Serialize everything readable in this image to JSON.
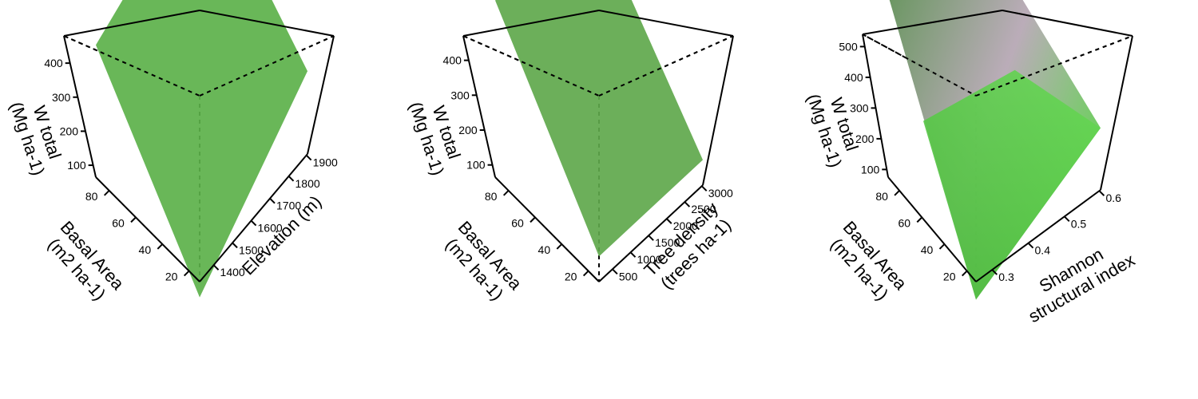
{
  "chart_data": [
    {
      "type": "surface",
      "zlabel": [
        "W total",
        "(Mg ha-1)"
      ],
      "ylabel": [
        "Basal Area",
        "(m2 ha-1)"
      ],
      "xlabel": [
        "Elevation (m)"
      ],
      "z_ticks": [
        "100",
        "200",
        "300",
        "400"
      ],
      "y_ticks": [
        "20",
        "40",
        "60",
        "80"
      ],
      "x_ticks": [
        "1400",
        "1500",
        "1600",
        "1700",
        "1800",
        "1900"
      ],
      "surface": {
        "corner_low_ba_low_x": 30,
        "corner_low_ba_high_x": 250,
        "corner_high_ba_low_x": 360,
        "corner_high_ba_high_x": 480
      },
      "color": "#5cb14a"
    },
    {
      "type": "surface",
      "zlabel": [
        "W total",
        "(Mg ha-1)"
      ],
      "ylabel": [
        "Basal Area",
        "(m2 ha-1)"
      ],
      "xlabel": [
        "Tree density",
        "(trees ha-1)"
      ],
      "z_ticks": [
        "100",
        "200",
        "300",
        "400"
      ],
      "y_ticks": [
        "20",
        "40",
        "60",
        "80"
      ],
      "x_ticks": [
        "500",
        "1000",
        "1500",
        "2000",
        "2500",
        "3000"
      ],
      "surface": {
        "corner_low_ba_low_x": 120,
        "corner_low_ba_high_x": 120,
        "corner_high_ba_low_x": 450,
        "corner_high_ba_high_x": 400
      },
      "color": "#5fa84c"
    },
    {
      "type": "surface",
      "zlabel": [
        "W total",
        "(Mg ha-1)"
      ],
      "ylabel": [
        "Basal Area",
        "(m2 ha-1)"
      ],
      "xlabel": [
        "Shannon",
        "structural index"
      ],
      "z_ticks": [
        "100",
        "200",
        "300",
        "400",
        "500"
      ],
      "y_ticks": [
        "20",
        "40",
        "60",
        "80"
      ],
      "x_ticks": [
        "0.3",
        "0.4",
        "0.5",
        "0.6"
      ],
      "surface": {
        "corner_low_ba_low_x": 30,
        "corner_low_ba_high_x": 230,
        "corner_high_ba_low_x": 530,
        "corner_high_ba_high_x": 330
      },
      "color": "#5ccf4a"
    }
  ]
}
